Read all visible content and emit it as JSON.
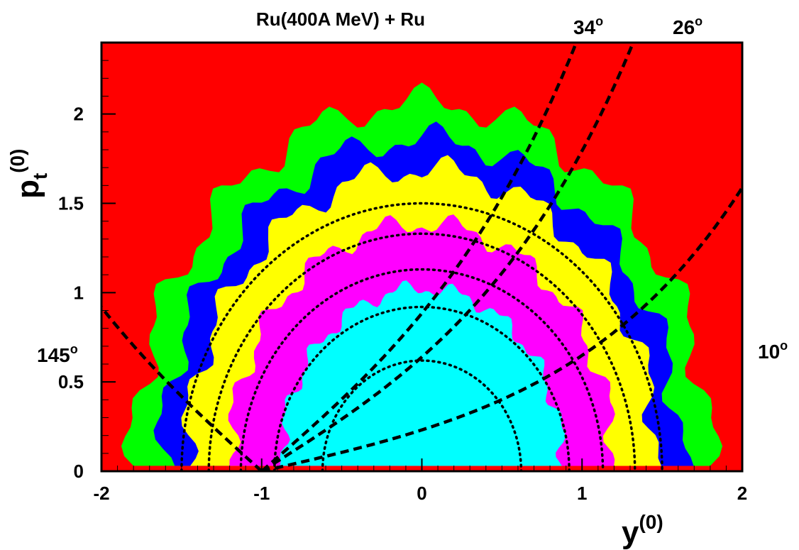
{
  "chart_data": {
    "type": "heatmap",
    "title": "Ru(400A MeV) + Ru",
    "xlabel": {
      "main": "y",
      "sup": "(0)"
    },
    "ylabel": {
      "main": "p",
      "sub": "t",
      "sup": "(0)"
    },
    "xlim": [
      -2,
      2
    ],
    "ylim": [
      0,
      2.4
    ],
    "x_ticks": [
      "-2",
      "-1",
      "0",
      "1",
      "2"
    ],
    "x_tick_values": [
      -2,
      -1,
      0,
      1,
      2
    ],
    "y_ticks": [
      "0",
      "0.5",
      "1",
      "1.5",
      "2"
    ],
    "y_tick_values": [
      0,
      0.5,
      1,
      1.5,
      2
    ],
    "grid": false,
    "legend": "none",
    "colors": {
      "background": "#ff0000",
      "levels": [
        "#00ff00",
        "#0000ff",
        "#ffff00",
        "#ff00ff",
        "#00ffff"
      ]
    },
    "contours": [
      {
        "level": 1,
        "color": "#00ff00",
        "radius": 1.8
      },
      {
        "level": 2,
        "color": "#0000ff",
        "radius": 1.62
      },
      {
        "level": 3,
        "color": "#ffff00",
        "radius": 1.47
      },
      {
        "level": 4,
        "color": "#ff00ff",
        "radius": 1.2
      },
      {
        "level": 5,
        "color": "#00ffff",
        "radius": 0.88
      }
    ],
    "dotted_circles": {
      "center": [
        0,
        0
      ],
      "radii": [
        0.62,
        0.92,
        1.13,
        1.33,
        1.5
      ]
    },
    "angle_lines": {
      "beam_rapidity": 1.0,
      "origin": [
        -1.0,
        0
      ],
      "lines": [
        {
          "label": "145°",
          "text": "145",
          "deg": "o",
          "theta": 145
        },
        {
          "label": "34°",
          "text": "34",
          "deg": "o",
          "theta": 34
        },
        {
          "label": "26°",
          "text": "26",
          "deg": "o",
          "theta": 26
        },
        {
          "label": "10°",
          "text": "10",
          "deg": "o",
          "theta": 10
        }
      ]
    }
  }
}
